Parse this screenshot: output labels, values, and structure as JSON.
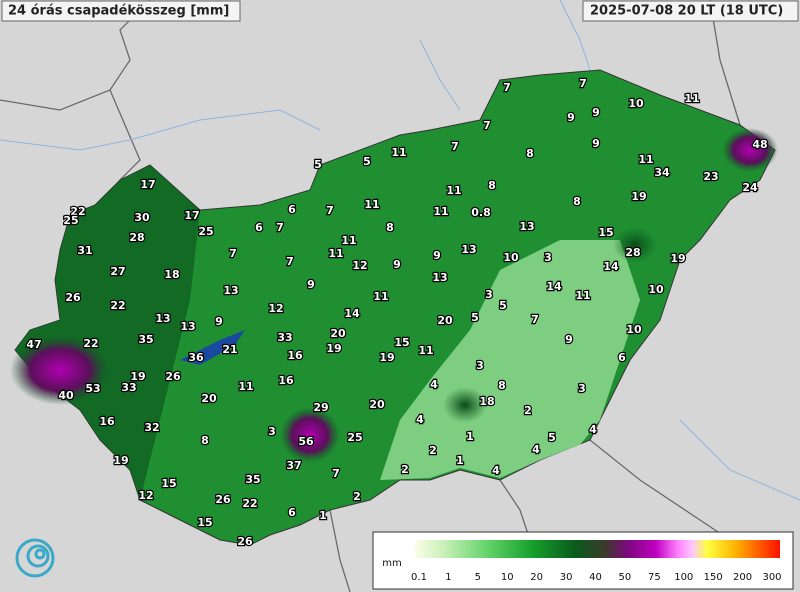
{
  "header": {
    "title": "24 órás csapadékösszeg [mm]",
    "time": "2025-07-08 20 LT (18 UTC)"
  },
  "stations": [
    7,
    7,
    10,
    11,
    9,
    9,
    7,
    9,
    48,
    7,
    8,
    11,
    5,
    5,
    11,
    34,
    23,
    24,
    17,
    11,
    8,
    19,
    8,
    11,
    7,
    6,
    11,
    0.8,
    22,
    25,
    30,
    17,
    25,
    6,
    7,
    8,
    13,
    15,
    28,
    11,
    11,
    13,
    10,
    3,
    28,
    19,
    31,
    7,
    7,
    12,
    9,
    9,
    14,
    27,
    18,
    13,
    9,
    14,
    11,
    10,
    26,
    22,
    13,
    3,
    5,
    11,
    12,
    14,
    13,
    13,
    9,
    20,
    5,
    7,
    10,
    47,
    22,
    35,
    33,
    20,
    19,
    15,
    9,
    21,
    16,
    11,
    19,
    36,
    6,
    3,
    26,
    19,
    53,
    33,
    16,
    11,
    4,
    8,
    3,
    40,
    20,
    18,
    29,
    20,
    2,
    16,
    32,
    4,
    3,
    56,
    25,
    1,
    5,
    4,
    8,
    2,
    4,
    1,
    19,
    37,
    7,
    2,
    4,
    35,
    15,
    12,
    26,
    22,
    2,
    6,
    1,
    15,
    26
  ],
  "legend": {
    "unit": "mm",
    "ticks": [
      0.1,
      1,
      5,
      10,
      20,
      30,
      40,
      50,
      75,
      100,
      150,
      200,
      300
    ]
  }
}
